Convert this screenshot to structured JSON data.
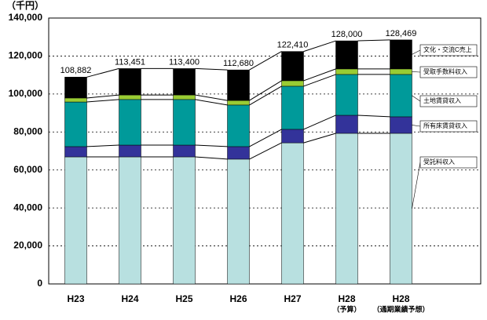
{
  "chart_data": {
    "type": "stacked_bar",
    "y_unit": "（千円）",
    "categories": [
      "H23",
      "H24",
      "H25",
      "H26",
      "H27",
      "H28",
      "H28"
    ],
    "category_notes": [
      null,
      null,
      null,
      null,
      null,
      "（予算）",
      "（通期業績予想）"
    ],
    "series": [
      {
        "name": "受託料収入",
        "color": "#b8e0e0",
        "values": [
          66900,
          66900,
          66900,
          65700,
          74300,
          79300,
          79300
        ]
      },
      {
        "name": "所有床賃貸収入",
        "color": "#33339a",
        "values": [
          5400,
          6200,
          6200,
          6600,
          7100,
          9500,
          8700
        ]
      },
      {
        "name": "土地賃貸収入",
        "color": "#009a9a",
        "values": [
          23500,
          24000,
          24000,
          21900,
          22700,
          21500,
          22300
        ]
      },
      {
        "name": "受取手数料収入",
        "color": "#99cc33",
        "values": [
          2100,
          2400,
          2400,
          2400,
          2900,
          2900,
          2900
        ]
      },
      {
        "name": "文化・交流C売上",
        "color": "#000000",
        "values": [
          11000,
          13900,
          13900,
          16100,
          15400,
          14800,
          15300
        ]
      }
    ],
    "totals": [
      108882,
      113451,
      113400,
      112680,
      122410,
      128000,
      128469
    ],
    "totals_labels": [
      "108,882",
      "113,451",
      "113,400",
      "112,680",
      "122,410",
      "128,000",
      "128,469"
    ],
    "ylim": [
      0,
      140000
    ],
    "yticks": [
      0,
      {
        "value": 20000,
        "label": "20,000"
      },
      {
        "value": 40000,
        "label": "40,000"
      },
      {
        "value": 60000,
        "label": "60,000"
      },
      {
        "value": 80000,
        "label": "80,000"
      },
      {
        "value": 100000,
        "label": "100,000"
      },
      {
        "value": 120000,
        "label": "120,000"
      },
      {
        "value": 140000,
        "label": "140,000"
      }
    ],
    "grid": true
  }
}
